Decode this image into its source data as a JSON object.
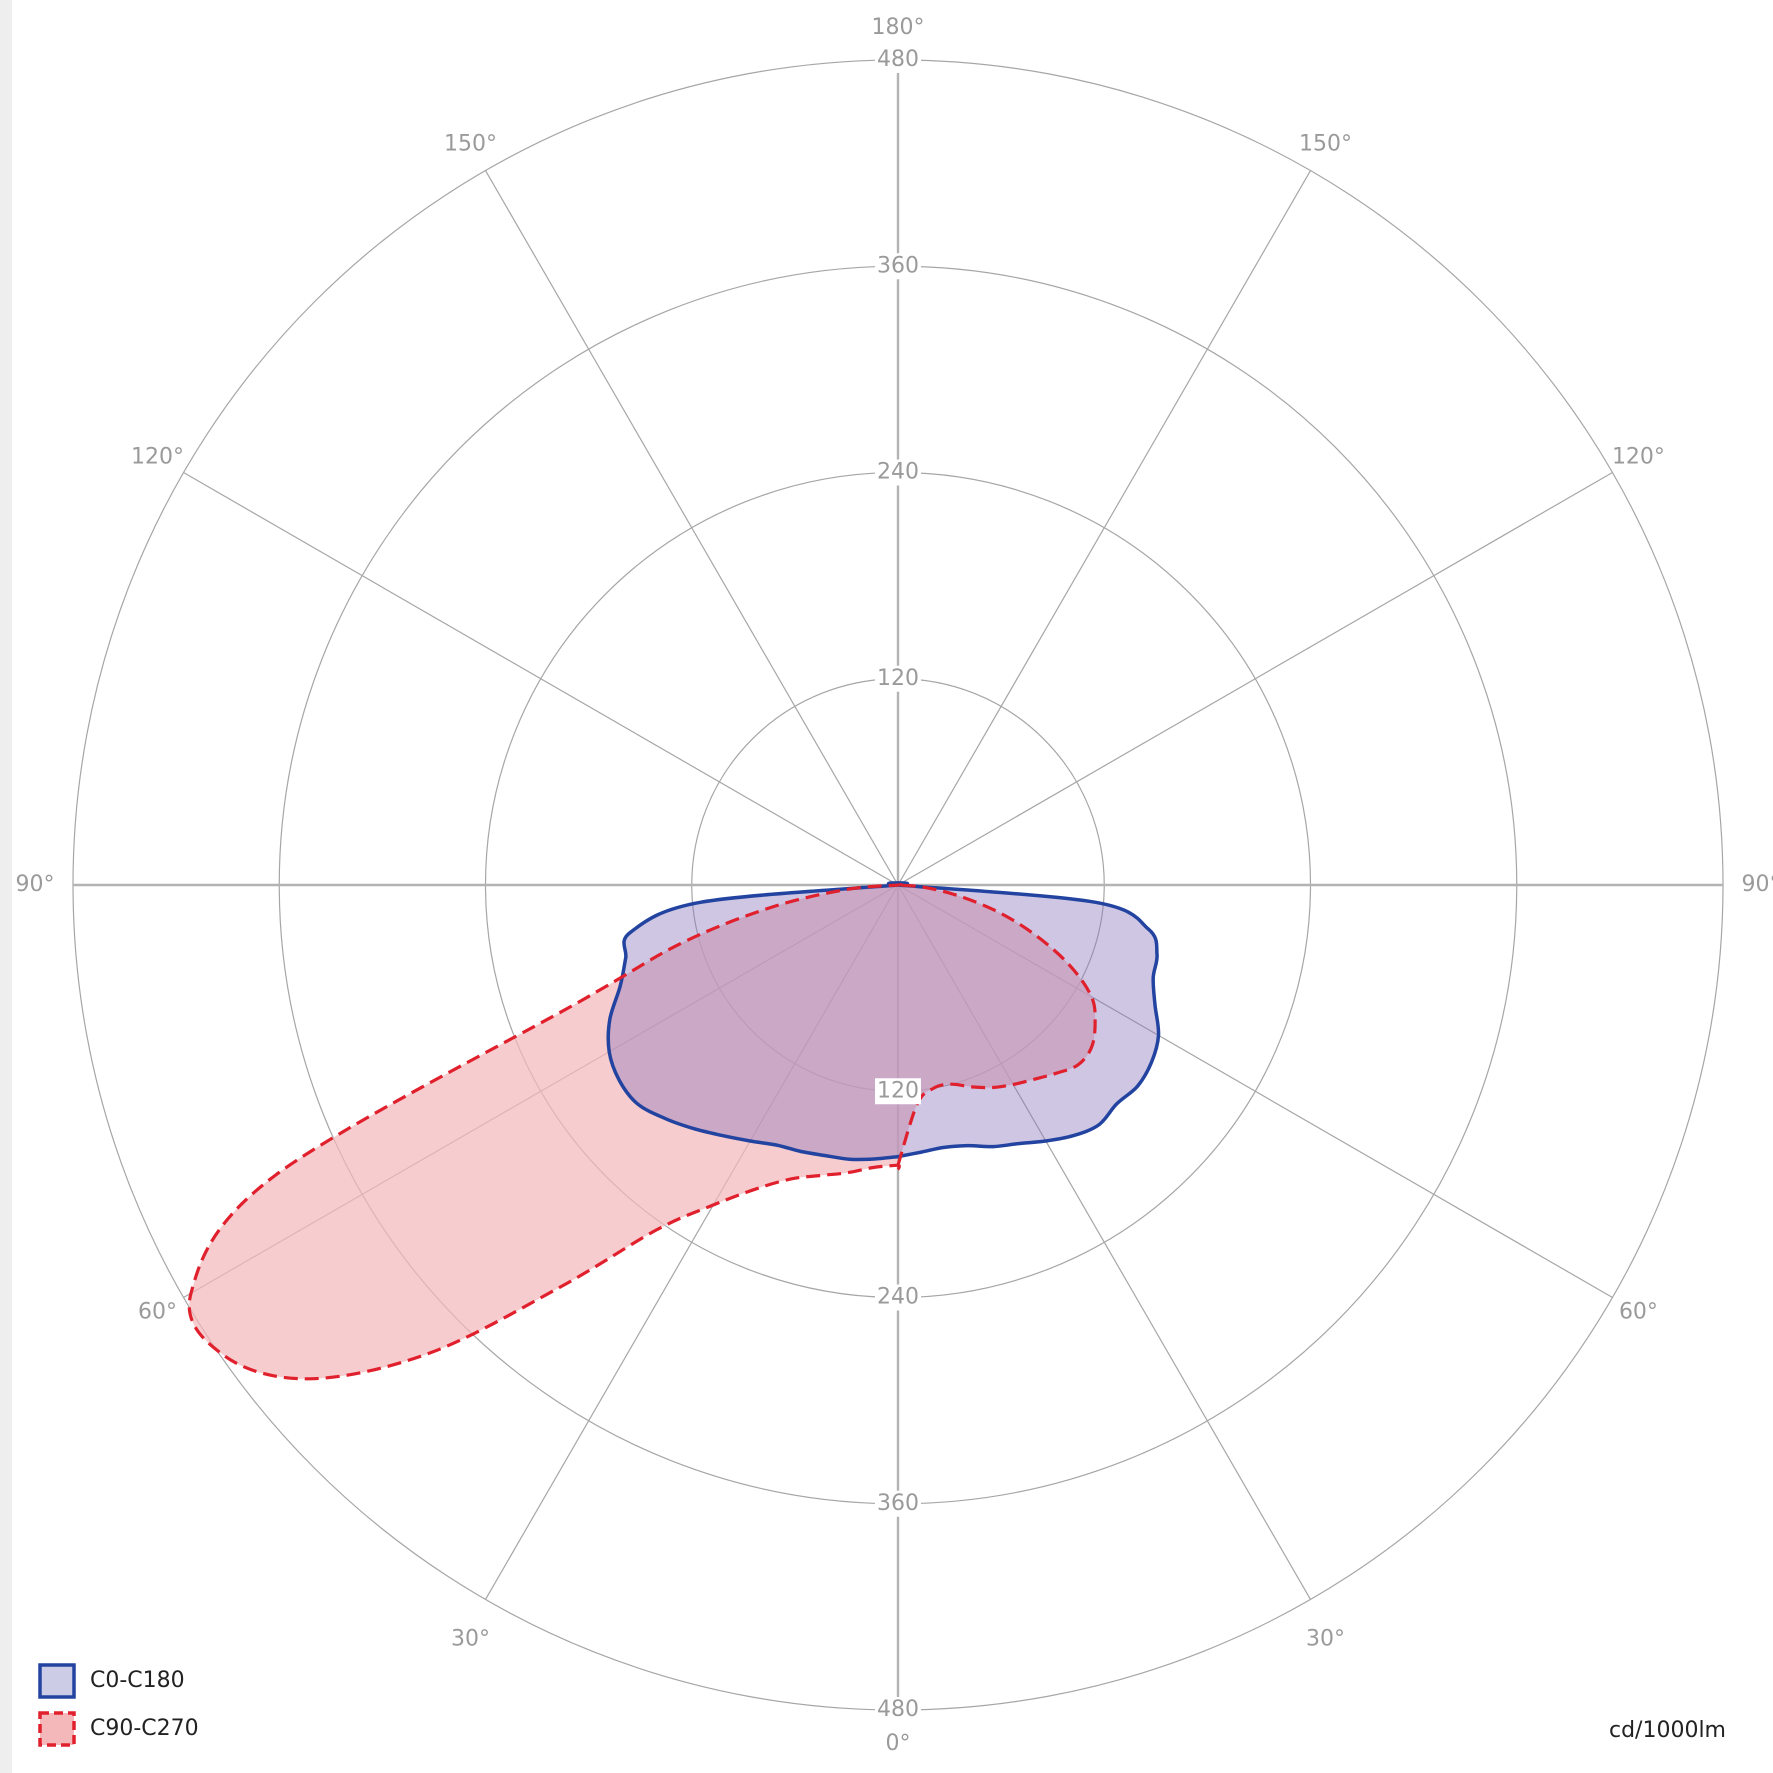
{
  "chart_data": {
    "type": "polar",
    "unit": "cd/1000lm",
    "radial_ticks": [
      120,
      240,
      360,
      480
    ],
    "rmax": 480,
    "angle_labels": {
      "bottom": "0°",
      "top": "180°",
      "left": [
        "30°",
        "60°",
        "90°",
        "120°",
        "150°"
      ],
      "right": [
        "30°",
        "60°",
        "90°",
        "120°",
        "150°"
      ]
    },
    "legend": [
      {
        "label": "C0-C180",
        "stroke": "#2244a0",
        "fill": "#cccce6",
        "dash": "none"
      },
      {
        "label": "C90-C270",
        "stroke": "#e0202c",
        "fill": "#f4b8bb",
        "dash": "14 7"
      }
    ],
    "series": [
      {
        "name": "C0-C180",
        "color": "#2244a0",
        "fill": "#cccce6",
        "left_half": [
          [
            0,
            158
          ],
          [
            5,
            160
          ],
          [
            10,
            162
          ],
          [
            15,
            163
          ],
          [
            20,
            165
          ],
          [
            25,
            167
          ],
          [
            30,
            172
          ],
          [
            35,
            178
          ],
          [
            40,
            185
          ],
          [
            45,
            192
          ],
          [
            50,
            198
          ],
          [
            55,
            198
          ],
          [
            60,
            194
          ],
          [
            65,
            185
          ],
          [
            70,
            172
          ],
          [
            75,
            164
          ],
          [
            80,
            158
          ],
          [
            85,
            115
          ],
          [
            90,
            0
          ]
        ],
        "right_half": [
          [
            0,
            158
          ],
          [
            5,
            156
          ],
          [
            10,
            155
          ],
          [
            15,
            157
          ],
          [
            20,
            162
          ],
          [
            25,
            166
          ],
          [
            30,
            172
          ],
          [
            35,
            178
          ],
          [
            40,
            182
          ],
          [
            45,
            180
          ],
          [
            50,
            182
          ],
          [
            55,
            180
          ],
          [
            60,
            175
          ],
          [
            65,
            165
          ],
          [
            70,
            158
          ],
          [
            75,
            156
          ],
          [
            80,
            148
          ],
          [
            85,
            115
          ],
          [
            90,
            0
          ]
        ]
      },
      {
        "name": "C90-C270",
        "color": "#e0202c",
        "fill": "#f4b8bb",
        "left_half": [
          [
            0,
            163
          ],
          [
            5,
            165
          ],
          [
            10,
            170
          ],
          [
            15,
            175
          ],
          [
            20,
            182
          ],
          [
            25,
            195
          ],
          [
            30,
            215
          ],
          [
            35,
            245
          ],
          [
            40,
            305
          ],
          [
            45,
            385
          ],
          [
            50,
            447
          ],
          [
            55,
            478
          ],
          [
            60,
            475
          ],
          [
            65,
            400
          ],
          [
            70,
            195
          ],
          [
            75,
            130
          ],
          [
            80,
            75
          ],
          [
            85,
            30
          ],
          [
            90,
            0
          ]
        ],
        "right_half": [
          [
            0,
            163
          ],
          [
            5,
            128
          ],
          [
            10,
            120
          ],
          [
            15,
            120
          ],
          [
            20,
            125
          ],
          [
            25,
            130
          ],
          [
            30,
            134
          ],
          [
            35,
            138
          ],
          [
            40,
            143
          ],
          [
            45,
            148
          ],
          [
            50,
            147
          ],
          [
            55,
            140
          ],
          [
            60,
            130
          ],
          [
            65,
            110
          ],
          [
            70,
            85
          ],
          [
            75,
            60
          ],
          [
            80,
            35
          ],
          [
            85,
            15
          ],
          [
            90,
            0
          ]
        ]
      }
    ]
  }
}
